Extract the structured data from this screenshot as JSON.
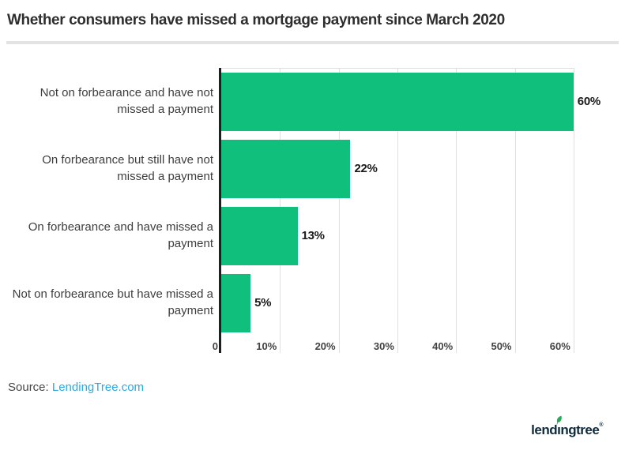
{
  "header": {
    "title": "Whether consumers have missed a mortgage payment since March 2020"
  },
  "chart_data": {
    "type": "bar",
    "orientation": "horizontal",
    "title": "Whether consumers have missed a mortgage payment since March 2020",
    "categories": [
      "Not on forbearance and have not missed a payment",
      "On forbearance but still have not missed a payment",
      "On forbearance and have missed a payment",
      "Not on forbearance but have missed a payment"
    ],
    "values": [
      60,
      22,
      13,
      5
    ],
    "value_labels": [
      "60%",
      "22%",
      "13%",
      "5%"
    ],
    "x_tick_values": [
      0,
      10,
      20,
      30,
      40,
      50,
      60
    ],
    "x_tick_labels": [
      "0",
      "10%",
      "20%",
      "30%",
      "40%",
      "50%",
      "60%"
    ],
    "xlim": [
      0,
      67
    ],
    "xlabel": "",
    "ylabel": "",
    "grid": true,
    "legend": "none"
  },
  "source": {
    "prefix": "Source: ",
    "link_text": "LendingTree.com"
  },
  "logo": {
    "wordmark": "lendingtree",
    "part_before_i": "lend",
    "dotless_i": "ı",
    "part_after_i": "ngtree",
    "registered_mark": "®",
    "leaf_icon": "leaf-icon"
  },
  "colors": {
    "bar": "#0fbf7b",
    "axis_line": "#1f1f1f",
    "gridline": "#e0e0e0",
    "title_text": "#2e2e2e",
    "category_text": "#3d3d3d",
    "value_text": "#1a1a1a",
    "tick_text": "#424242",
    "source_text": "#464646",
    "source_link": "#29abe2",
    "logo_text": "#0e2a3d",
    "leaf_green": "#27b159",
    "divider": "#e3e3e3",
    "background": "#ffffff"
  }
}
